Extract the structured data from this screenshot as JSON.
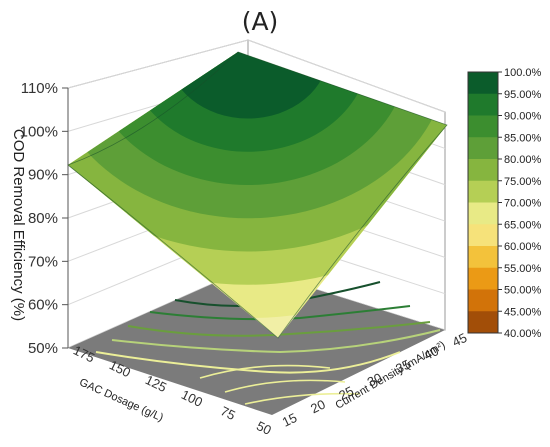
{
  "panel_label": "(A)",
  "chart_data": {
    "type": "surface",
    "title": "",
    "zlabel": "COD Removal Efficiency (%)",
    "xlabel": "Current Density (mA/cm²)",
    "ylabel": "GAC Dosage (g/L)",
    "z_ticks": [
      "50%",
      "60%",
      "70%",
      "80%",
      "90%",
      "100%",
      "110%"
    ],
    "x_ticks": [
      "15",
      "20",
      "25",
      "30",
      "35",
      "40",
      "45"
    ],
    "y_ticks": [
      "50",
      "75",
      "100",
      "125",
      "150",
      "175"
    ],
    "zlim": [
      50,
      110
    ],
    "xlim": [
      15,
      45
    ],
    "ylim": [
      50,
      175
    ],
    "surface_corners": [
      {
        "current_density": 15,
        "gac_dosage": 50,
        "cod_removal": 54
      },
      {
        "current_density": 45,
        "gac_dosage": 50,
        "cod_removal": 102
      },
      {
        "current_density": 15,
        "gac_dosage": 175,
        "cod_removal": 91
      },
      {
        "current_density": 45,
        "gac_dosage": 175,
        "cod_removal": 111
      }
    ],
    "colorbar": {
      "labels": [
        "100.0%",
        "95.00%",
        "90.00%",
        "85.00%",
        "80.00%",
        "75.00%",
        "70.00%",
        "65.00%",
        "60.00%",
        "55.00%",
        "50.00%",
        "45.00%",
        "40.00%"
      ],
      "colors": [
        "#0b5c2b",
        "#1f7a2c",
        "#3c8e2f",
        "#5e9f38",
        "#86b53f",
        "#b5cf55",
        "#e8ea86",
        "#f6e27a",
        "#f3c23b",
        "#eb9a15",
        "#d27309",
        "#a24e08",
        "#6d3507"
      ]
    },
    "contour_colors": [
      "#17502d",
      "#2c7e35",
      "#6a9e3e",
      "#b7d27a",
      "#ecef98"
    ],
    "floor_color": "#7b7b7b",
    "grid": true
  }
}
